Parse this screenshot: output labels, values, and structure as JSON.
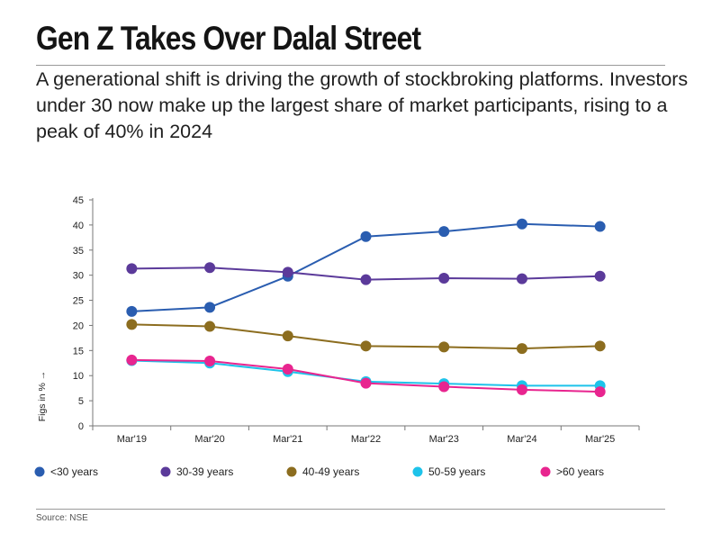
{
  "title": "Gen Z Takes Over Dalal Street",
  "subtitle": "A generational shift is driving the growth of stockbroking platforms. Investors under 30 now make up the largest share of market participants, rising to a peak of 40% in 2024",
  "source": "Source: NSE",
  "chart_data": {
    "type": "line",
    "categories": [
      "Mar'19",
      "Mar'20",
      "Mar'21",
      "Mar'22",
      "Mar'23",
      "Mar'24",
      "Mar'25"
    ],
    "ylabel": "Figs in %  →",
    "xlabel": "",
    "ylim": [
      0,
      45
    ],
    "yticks": [
      0,
      5,
      10,
      15,
      20,
      25,
      30,
      35,
      40,
      45
    ],
    "grid": false,
    "legend_position": "bottom",
    "series": [
      {
        "name": "<30 years",
        "color": "#2a5db0",
        "values": [
          22.8,
          23.6,
          29.8,
          37.7,
          38.7,
          40.2,
          39.7
        ]
      },
      {
        "name": "30-39 years",
        "color": "#5b3a9a",
        "values": [
          31.3,
          31.5,
          30.6,
          29.1,
          29.4,
          29.3,
          29.8
        ]
      },
      {
        "name": "40-49 years",
        "color": "#8c6d1f",
        "values": [
          20.2,
          19.8,
          17.9,
          15.9,
          15.7,
          15.4,
          15.9
        ]
      },
      {
        "name": "50-59 years",
        "color": "#1ec3ea",
        "values": [
          13.0,
          12.5,
          10.8,
          8.8,
          8.4,
          8.0,
          8.0
        ]
      },
      {
        "name": ">60 years",
        "color": "#e8258f",
        "values": [
          13.1,
          12.9,
          11.3,
          8.5,
          7.8,
          7.2,
          6.8
        ]
      }
    ]
  }
}
